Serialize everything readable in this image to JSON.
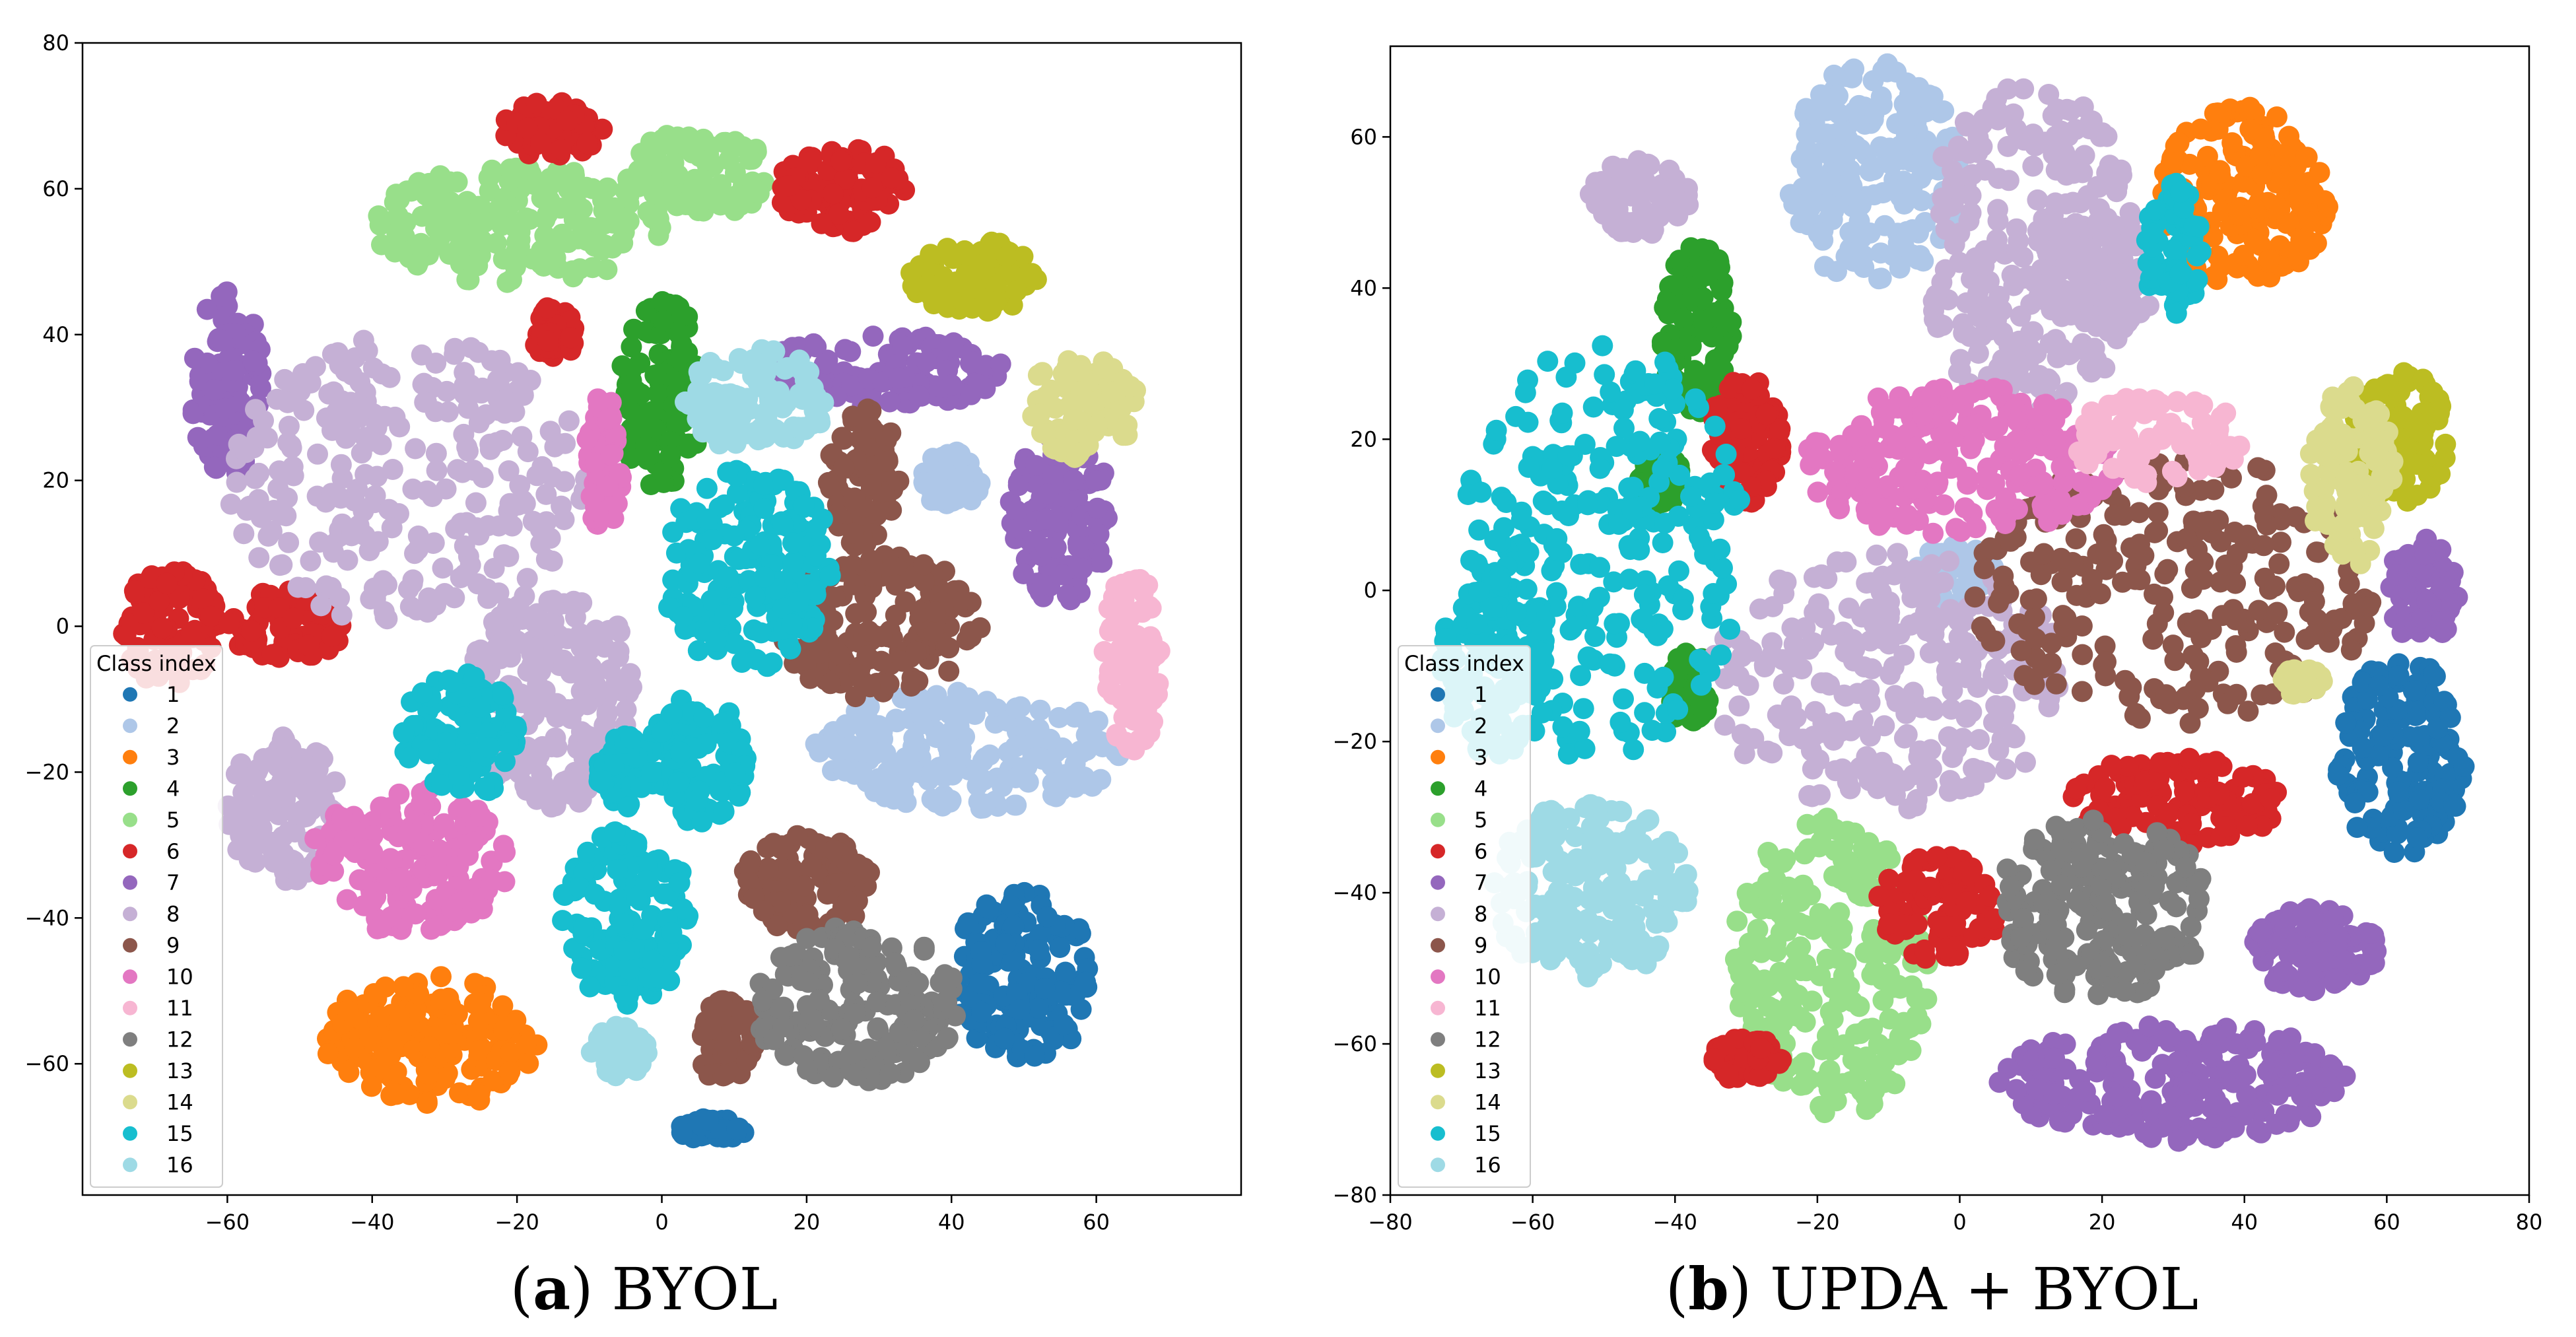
{
  "chart_data": [
    {
      "type": "scatter",
      "id": "a",
      "caption_letter": "a",
      "caption_text": "BYOL",
      "xlim": [
        -80,
        80
      ],
      "ylim": [
        -78,
        80
      ],
      "xticks": [
        -60,
        -40,
        -20,
        0,
        20,
        40,
        60
      ],
      "yticks": [
        -60,
        -40,
        -20,
        0,
        20,
        40,
        60,
        80
      ],
      "legend_title": "Class index",
      "legend_position": "lower-left",
      "grid": false,
      "clusters": [
        {
          "cls": 1,
          "x": 50,
          "y": -48,
          "rx": 10,
          "ry": 12
        },
        {
          "cls": 1,
          "x": 7,
          "y": -69,
          "rx": 5,
          "ry": 1.5
        },
        {
          "cls": 2,
          "x": 43,
          "y": -17,
          "rx": 22,
          "ry": 8
        },
        {
          "cls": 2,
          "x": 40,
          "y": 20,
          "rx": 4,
          "ry": 4
        },
        {
          "cls": 3,
          "x": -32,
          "y": -57,
          "rx": 15,
          "ry": 9
        },
        {
          "cls": 4,
          "x": 0,
          "y": 32,
          "rx": 6,
          "ry": 13
        },
        {
          "cls": 5,
          "x": -20,
          "y": 55,
          "rx": 20,
          "ry": 8
        },
        {
          "cls": 5,
          "x": 5,
          "y": 62,
          "rx": 10,
          "ry": 6
        },
        {
          "cls": 6,
          "x": 25,
          "y": 60,
          "rx": 9,
          "ry": 6
        },
        {
          "cls": 6,
          "x": -68,
          "y": 0,
          "rx": 7,
          "ry": 8
        },
        {
          "cls": 6,
          "x": -52,
          "y": 0,
          "rx": 8,
          "ry": 5
        },
        {
          "cls": 6,
          "x": -15,
          "y": 68,
          "rx": 7,
          "ry": 4
        },
        {
          "cls": 6,
          "x": -15,
          "y": 40,
          "rx": 3,
          "ry": 4
        },
        {
          "cls": 7,
          "x": 30,
          "y": 35,
          "rx": 18,
          "ry": 5
        },
        {
          "cls": 7,
          "x": -60,
          "y": 33,
          "rx": 5,
          "ry": 13
        },
        {
          "cls": 7,
          "x": 55,
          "y": 15,
          "rx": 7,
          "ry": 12
        },
        {
          "cls": 8,
          "x": -35,
          "y": 20,
          "rx": 25,
          "ry": 20
        },
        {
          "cls": 8,
          "x": -15,
          "y": -10,
          "rx": 12,
          "ry": 15
        },
        {
          "cls": 8,
          "x": -52,
          "y": -25,
          "rx": 8,
          "ry": 10
        },
        {
          "cls": 9,
          "x": 30,
          "y": 0,
          "rx": 14,
          "ry": 10
        },
        {
          "cls": 9,
          "x": 28,
          "y": 20,
          "rx": 5,
          "ry": 10
        },
        {
          "cls": 9,
          "x": 20,
          "y": -35,
          "rx": 9,
          "ry": 7
        },
        {
          "cls": 9,
          "x": 9,
          "y": -57,
          "rx": 4,
          "ry": 6
        },
        {
          "cls": 10,
          "x": -35,
          "y": -32,
          "rx": 14,
          "ry": 10
        },
        {
          "cls": 10,
          "x": -8,
          "y": 22,
          "rx": 2.5,
          "ry": 10
        },
        {
          "cls": 11,
          "x": 65,
          "y": -5,
          "rx": 4,
          "ry": 13
        },
        {
          "cls": 12,
          "x": 27,
          "y": -52,
          "rx": 14,
          "ry": 11
        },
        {
          "cls": 13,
          "x": 43,
          "y": 48,
          "rx": 9,
          "ry": 5
        },
        {
          "cls": 14,
          "x": 58,
          "y": 30,
          "rx": 8,
          "ry": 7
        },
        {
          "cls": 15,
          "x": 12,
          "y": 8,
          "rx": 12,
          "ry": 14
        },
        {
          "cls": 15,
          "x": -5,
          "y": -40,
          "rx": 9,
          "ry": 12
        },
        {
          "cls": 15,
          "x": 5,
          "y": -18,
          "rx": 7,
          "ry": 9
        },
        {
          "cls": 15,
          "x": -28,
          "y": -15,
          "rx": 8,
          "ry": 9
        },
        {
          "cls": 15,
          "x": -5,
          "y": -20,
          "rx": 4,
          "ry": 5
        },
        {
          "cls": 16,
          "x": 13,
          "y": 31,
          "rx": 10,
          "ry": 7
        },
        {
          "cls": 16,
          "x": -6,
          "y": -58,
          "rx": 4,
          "ry": 4
        }
      ]
    },
    {
      "type": "scatter",
      "id": "b",
      "caption_letter": "b",
      "caption_text": "UPDA + BYOL",
      "xlim": [
        -80,
        80
      ],
      "ylim": [
        -80,
        72
      ],
      "xticks": [
        -80,
        -60,
        -40,
        -20,
        0,
        20,
        40,
        60,
        80
      ],
      "yticks": [
        -80,
        -60,
        -40,
        -20,
        0,
        20,
        40,
        60
      ],
      "legend_title": "Class index",
      "legend_position": "lower-left",
      "grid": false,
      "clusters": [
        {
          "cls": 1,
          "x": 62,
          "y": -22,
          "rx": 9,
          "ry": 13
        },
        {
          "cls": 2,
          "x": -12,
          "y": 55,
          "rx": 12,
          "ry": 15
        },
        {
          "cls": 2,
          "x": -1,
          "y": 2,
          "rx": 6,
          "ry": 4
        },
        {
          "cls": 3,
          "x": 40,
          "y": 52,
          "rx": 12,
          "ry": 12
        },
        {
          "cls": 4,
          "x": -37,
          "y": 35,
          "rx": 5,
          "ry": 12
        },
        {
          "cls": 4,
          "x": -42,
          "y": 15,
          "rx": 3,
          "ry": 4
        },
        {
          "cls": 4,
          "x": -38,
          "y": -13,
          "rx": 3,
          "ry": 5
        },
        {
          "cls": 5,
          "x": -18,
          "y": -50,
          "rx": 14,
          "ry": 20
        },
        {
          "cls": 6,
          "x": 30,
          "y": -28,
          "rx": 15,
          "ry": 6
        },
        {
          "cls": 6,
          "x": -3,
          "y": -42,
          "rx": 9,
          "ry": 7
        },
        {
          "cls": 6,
          "x": -30,
          "y": 20,
          "rx": 5,
          "ry": 9
        },
        {
          "cls": 6,
          "x": -30,
          "y": -62,
          "rx": 5,
          "ry": 3
        },
        {
          "cls": 7,
          "x": 30,
          "y": -65,
          "rx": 25,
          "ry": 8
        },
        {
          "cls": 7,
          "x": 65,
          "y": 0,
          "rx": 5,
          "ry": 7
        },
        {
          "cls": 7,
          "x": 50,
          "y": -48,
          "rx": 9,
          "ry": 6
        },
        {
          "cls": 8,
          "x": -10,
          "y": -12,
          "rx": 25,
          "ry": 17
        },
        {
          "cls": 8,
          "x": 10,
          "y": 45,
          "rx": 15,
          "ry": 22
        },
        {
          "cls": 8,
          "x": -45,
          "y": 52,
          "rx": 7,
          "ry": 5
        },
        {
          "cls": 8,
          "x": 20,
          "y": 42,
          "rx": 8,
          "ry": 8
        },
        {
          "cls": 9,
          "x": 30,
          "y": 0,
          "rx": 28,
          "ry": 18
        },
        {
          "cls": 10,
          "x": 0,
          "y": 17,
          "rx": 22,
          "ry": 10
        },
        {
          "cls": 11,
          "x": 28,
          "y": 20,
          "rx": 12,
          "ry": 6
        },
        {
          "cls": 12,
          "x": 20,
          "y": -42,
          "rx": 15,
          "ry": 12
        },
        {
          "cls": 13,
          "x": 62,
          "y": 20,
          "rx": 7,
          "ry": 9
        },
        {
          "cls": 14,
          "x": 55,
          "y": 15,
          "rx": 6,
          "ry": 12
        },
        {
          "cls": 14,
          "x": 48,
          "y": -12,
          "rx": 3,
          "ry": 2
        },
        {
          "cls": 15,
          "x": -50,
          "y": 5,
          "rx": 20,
          "ry": 28
        },
        {
          "cls": 15,
          "x": 30,
          "y": 45,
          "rx": 4,
          "ry": 9
        },
        {
          "cls": 15,
          "x": -65,
          "y": -10,
          "rx": 8,
          "ry": 12
        },
        {
          "cls": 16,
          "x": -52,
          "y": -40,
          "rx": 14,
          "ry": 12
        }
      ]
    }
  ],
  "legend": {
    "title": "Class index",
    "items": [
      "1",
      "2",
      "3",
      "4",
      "5",
      "6",
      "7",
      "8",
      "9",
      "10",
      "11",
      "12",
      "13",
      "14",
      "15",
      "16"
    ]
  },
  "colors": {
    "1": "#1f77b4",
    "2": "#aec7e8",
    "3": "#ff7f0e",
    "4": "#2ca02c",
    "5": "#98df8a",
    "6": "#d62728",
    "7": "#9467bd",
    "8": "#c5b0d5",
    "9": "#8c564b",
    "10": "#e377c2",
    "11": "#f7b6d2",
    "12": "#7f7f7f",
    "13": "#bcbd22",
    "14": "#dbdb8d",
    "15": "#17becf",
    "16": "#9edae5"
  },
  "captions": {
    "a": {
      "letter": "a",
      "text": "BYOL"
    },
    "b": {
      "letter": "b",
      "text": "UPDA + BYOL"
    }
  }
}
